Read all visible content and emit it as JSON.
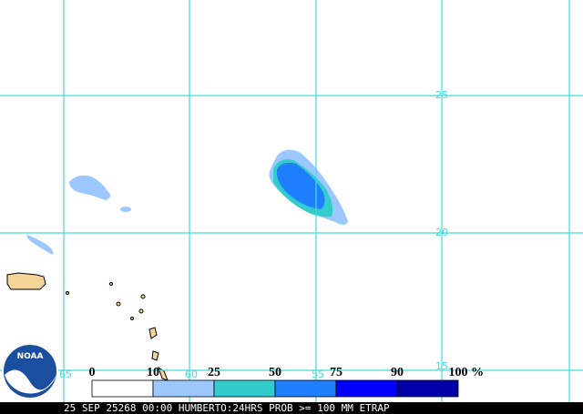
{
  "map": {
    "lat_labels": [
      "25",
      "20",
      "15"
    ],
    "lon_labels": [
      "65",
      "60",
      "55"
    ],
    "logo": "NOAA",
    "legend": {
      "thresholds": [
        0,
        10,
        25,
        50,
        75,
        90,
        100
      ],
      "unit": "%",
      "colors": [
        "#ffffff",
        "#9cc8ff",
        "#33cccc",
        "#1e7fff",
        "#0000ff",
        "#0000a8"
      ]
    },
    "footer": "25 SEP 25268 00:00 HUMBERTO:24HRS PROB >= 100 MM ETRAP"
  }
}
